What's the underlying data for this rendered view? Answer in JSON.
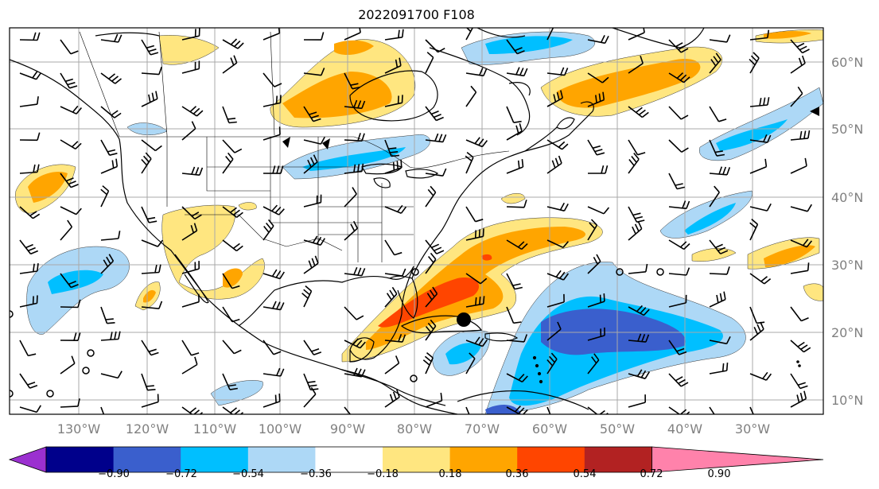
{
  "title": "2022091700 F108",
  "longitude_labels": [
    "130°W",
    "120°W",
    "110°W",
    "100°W",
    "90°W",
    "80°W",
    "70°W",
    "60°W",
    "50°W",
    "40°W",
    "30°W"
  ],
  "latitude_labels": [
    "60°N",
    "50°N",
    "40°N",
    "30°N",
    "20°N",
    "10°N"
  ],
  "colorbar": {
    "labels": [
      "−0.90",
      "−0.72",
      "−0.54",
      "−0.36",
      "−0.18",
      "0.18",
      "0.36",
      "0.54",
      "0.72",
      "0.90"
    ],
    "colors": [
      "#9b30d0",
      "#00008b",
      "#3a5fcd",
      "#00bfff",
      "#add8f6",
      "#ffffff",
      "#ffe680",
      "#ffa500",
      "#ff4500",
      "#b22222",
      "#ff82ab"
    ]
  },
  "colors": {
    "gridline": "#a9a9a9",
    "coastline": "#000000",
    "lightblue": "#add8f6",
    "blue": "#00bfff",
    "royal": "#3a5fcd",
    "yellow": "#ffe680",
    "orange": "#ffa500",
    "red": "#ff4500"
  },
  "markers": {
    "storm_center": "filled-circle",
    "open_circles": "open-circle"
  }
}
